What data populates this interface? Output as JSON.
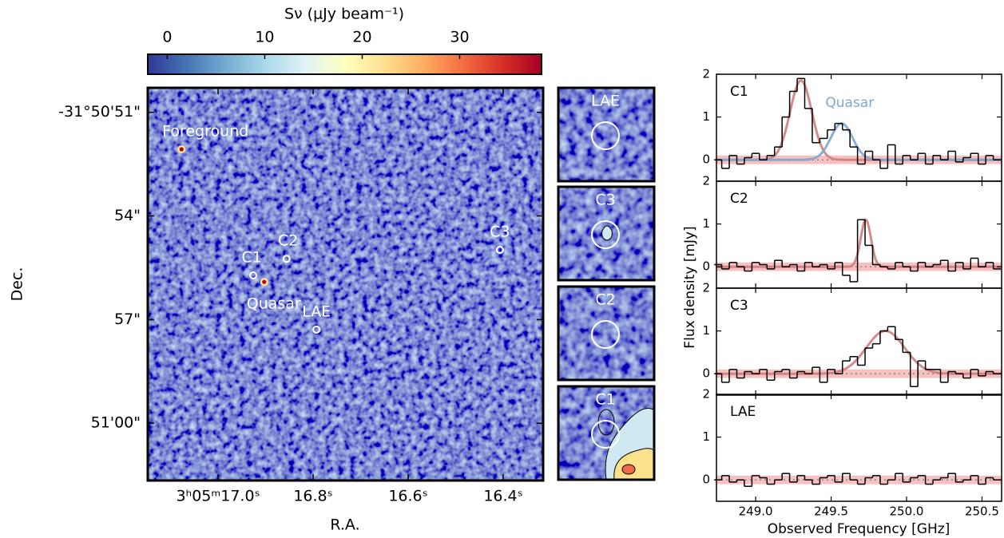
{
  "chart_data": [
    {
      "type": "map",
      "xlabel": "R.A.",
      "ylabel": "Dec.",
      "xlim": [
        17.148,
        16.316
      ],
      "ylim": [
        61.66,
        50.29
      ],
      "xticks": [
        {
          "value": 17.0,
          "label": "3ʰ05ᵐ17.0ˢ"
        },
        {
          "value": 16.8,
          "label": "16.8ˢ"
        },
        {
          "value": 16.6,
          "label": "16.6ˢ"
        },
        {
          "value": 16.4,
          "label": "16.4ˢ"
        }
      ],
      "yticks": [
        {
          "value": 51,
          "label": "-31°50'51\""
        },
        {
          "value": 54,
          "label": "54\""
        },
        {
          "value": 57,
          "label": "57\""
        },
        {
          "value": 60,
          "label": "51'00\""
        }
      ],
      "points": {
        "labels": [
          "Foreground",
          "C1",
          "C2",
          "Quasar",
          "LAE",
          "C3"
        ],
        "x": [
          17.077,
          16.926,
          16.856,
          16.903,
          16.793,
          16.407
        ],
        "y": [
          52.07,
          55.72,
          55.24,
          55.91,
          57.29,
          54.98
        ],
        "style": [
          "dot",
          "circle",
          "circle",
          "dot",
          "circle",
          "circle"
        ]
      },
      "colorbar": {
        "label": "Sν (μJy beam⁻¹)",
        "lim": [
          -2,
          38.4
        ],
        "ticks": [
          0,
          10,
          20,
          30
        ],
        "colormap": [
          "#313695",
          "#4575b4",
          "#74add1",
          "#abd9e9",
          "#e0f3f8",
          "#ffffbf",
          "#fee090",
          "#fdae61",
          "#f46d43",
          "#d73027",
          "#a50026"
        ]
      },
      "insets": [
        "LAE",
        "C3",
        "C2",
        "C1"
      ]
    },
    {
      "type": "step",
      "xlabel": "Observed Frequency [GHz]",
      "ylabel": "Flux density [mJy]",
      "xlim": [
        248.74,
        250.63
      ],
      "ylim": [
        -0.5,
        2
      ],
      "xticks": [
        {
          "value": 249,
          "label": "249.0"
        },
        249.5,
        {
          "value": 250,
          "label": "250.0"
        },
        250.5
      ],
      "yticks": [
        0,
        1,
        2
      ],
      "x": [
        248.75,
        248.8,
        248.85,
        248.9,
        248.95,
        249.0,
        249.05,
        249.1,
        249.15,
        249.2,
        249.25,
        249.3,
        249.35,
        249.4,
        249.45,
        249.5,
        249.55,
        249.6,
        249.65,
        249.7,
        249.75,
        249.8,
        249.85,
        249.9,
        249.95,
        250.0,
        250.05,
        250.1,
        250.15,
        250.2,
        250.25,
        250.3,
        250.35,
        250.4,
        250.45,
        250.5,
        250.55,
        250.6
      ],
      "panels": [
        {
          "label": "C1",
          "color": "#000000",
          "noise": 0.1,
          "values": [
            0.0,
            -0.2,
            0.1,
            -0.1,
            0.05,
            0.15,
            0.0,
            0.1,
            0.3,
            1.0,
            1.6,
            1.9,
            1.2,
            0.4,
            0.5,
            0.7,
            0.85,
            0.7,
            0.3,
            -0.1,
            0.2,
            0.0,
            -0.2,
            0.35,
            -0.1,
            0.1,
            0.0,
            0.15,
            -0.1,
            0.1,
            0.0,
            0.2,
            -0.05,
            0.05,
            0.15,
            -0.1,
            0.1,
            0.0
          ],
          "fits": [
            {
              "amplitude": 1.85,
              "center": 249.3,
              "fwhm": 0.17,
              "color": "#cd7f7f"
            },
            {
              "name": "Quasar",
              "amplitude": 0.85,
              "center": 249.57,
              "fwhm": 0.17,
              "color": "#7fa7cf"
            }
          ]
        },
        {
          "label": "C2",
          "color": "#000000",
          "noise": 0.1,
          "values": [
            0.05,
            -0.05,
            0.1,
            0.0,
            -0.1,
            0.1,
            0.05,
            -0.05,
            0.15,
            0.0,
            0.05,
            -0.1,
            0.1,
            0.0,
            0.05,
            -0.05,
            0.1,
            -0.2,
            -0.35,
            1.1,
            0.5,
            0.05,
            0.0,
            -0.05,
            0.1,
            0.0,
            -0.1,
            0.1,
            0.0,
            0.05,
            0.15,
            -0.1,
            0.1,
            -0.05,
            0.2,
            0.0,
            0.1,
            -0.05
          ],
          "fits": [
            {
              "amplitude": 1.1,
              "center": 249.73,
              "fwhm": 0.08,
              "color": "#cd7f7f"
            }
          ]
        },
        {
          "label": "C3",
          "color": "#000000",
          "noise": 0.1,
          "values": [
            0.0,
            -0.2,
            0.1,
            -0.1,
            0.05,
            0.0,
            0.1,
            -0.15,
            0.05,
            0.1,
            -0.1,
            0.05,
            0.0,
            0.15,
            -0.2,
            0.1,
            0.0,
            0.3,
            0.4,
            0.2,
            0.6,
            0.7,
            1.0,
            1.1,
            0.8,
            0.5,
            -0.3,
            0.3,
            0.1,
            0.1,
            -0.2,
            0.05,
            0.0,
            -0.1,
            0.1,
            -0.05,
            0.05,
            0.0
          ],
          "fits": [
            {
              "amplitude": 1.0,
              "center": 249.86,
              "fwhm": 0.3,
              "color": "#cd7f7f"
            }
          ]
        },
        {
          "label": "LAE",
          "color": "#000000",
          "noise": 0.1,
          "values": [
            0.0,
            0.1,
            -0.05,
            0.0,
            -0.15,
            0.1,
            0.05,
            -0.1,
            0.0,
            0.15,
            -0.05,
            0.1,
            0.0,
            -0.1,
            0.05,
            0.1,
            -0.05,
            0.15,
            0.0,
            -0.1,
            0.05,
            0.1,
            -0.1,
            0.0,
            0.15,
            -0.05,
            0.05,
            0.1,
            -0.1,
            0.0,
            0.05,
            0.15,
            -0.05,
            0.0,
            0.1,
            -0.1,
            0.05,
            0.0
          ],
          "fits": []
        }
      ]
    }
  ]
}
